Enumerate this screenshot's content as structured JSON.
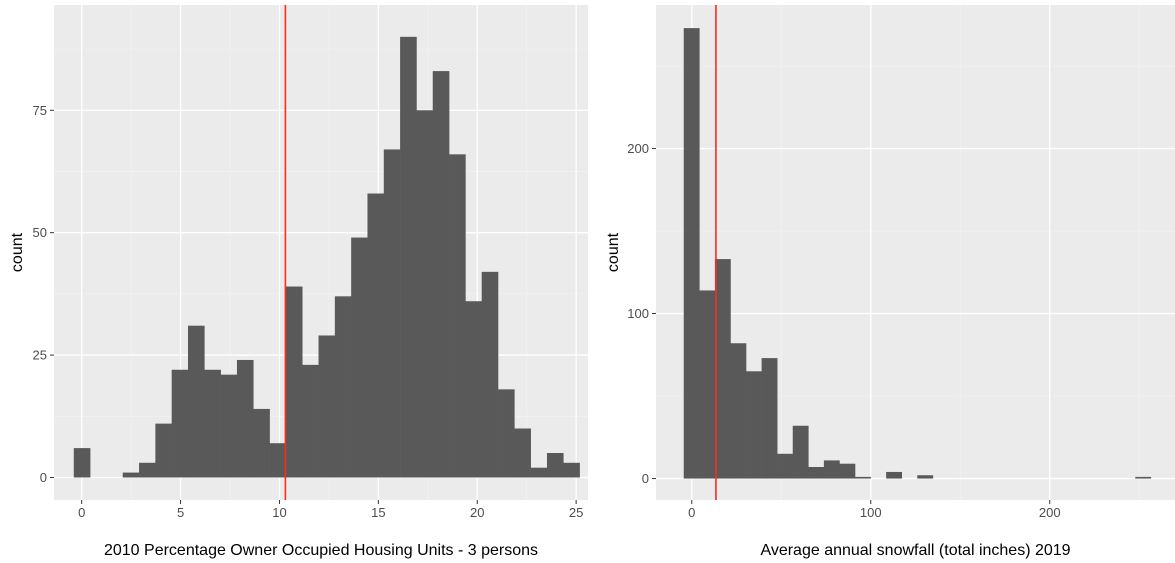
{
  "colors": {
    "panel_bg": "#ebebeb",
    "grid_major": "#ffffff",
    "grid_minor": "#f2f2f2",
    "bar_fill": "#595959",
    "reference_line": "#ff2a1a",
    "tick_text": "#4d4d4d",
    "title_text": "#000000"
  },
  "chart_data": [
    {
      "type": "bar",
      "subtype": "histogram",
      "title": "",
      "xlabel": "2010 Percentage Owner Occupied Housing Units - 3 persons",
      "ylabel": "count",
      "xlim": [
        -1.4,
        25.6
      ],
      "ylim": [
        -4.6,
        96.5
      ],
      "x_ticks": [
        0,
        5,
        10,
        15,
        20,
        25
      ],
      "x_tick_labels": [
        "0",
        "5",
        "10",
        "15",
        "20",
        "25"
      ],
      "y_ticks": [
        0,
        25,
        50,
        75
      ],
      "y_tick_labels": [
        "0",
        "25",
        "50",
        "75"
      ],
      "bin_start": -0.4,
      "bin_width": 0.825,
      "counts": [
        6,
        0,
        0,
        1,
        3,
        11,
        22,
        31,
        22,
        21,
        24,
        14,
        7,
        39,
        23,
        29,
        37,
        49,
        58,
        67,
        90,
        75,
        83,
        66,
        36,
        42,
        18,
        10,
        2,
        5,
        3
      ],
      "vline_x": 10.3,
      "grid": true,
      "legend": "none"
    },
    {
      "type": "bar",
      "subtype": "histogram",
      "title": "",
      "xlabel": "Average annual snowfall (total inches) 2019",
      "ylabel": "count",
      "xlim": [
        -20,
        270
      ],
      "ylim": [
        -13,
        287
      ],
      "x_ticks": [
        0,
        100,
        200
      ],
      "x_tick_labels": [
        "0",
        "100",
        "200"
      ],
      "y_ticks": [
        0,
        100,
        200
      ],
      "y_tick_labels": [
        "0",
        "100",
        "200"
      ],
      "bin_start": -4.5,
      "bin_width": 8.7,
      "counts": [
        273,
        114,
        133,
        82,
        65,
        73,
        15,
        32,
        7,
        11,
        9,
        1,
        0,
        4,
        0,
        2,
        0,
        0,
        0,
        0,
        0,
        0,
        0,
        0,
        0,
        0,
        0,
        0,
        0,
        1
      ],
      "vline_x": 13.5,
      "grid": true,
      "legend": "none"
    }
  ]
}
